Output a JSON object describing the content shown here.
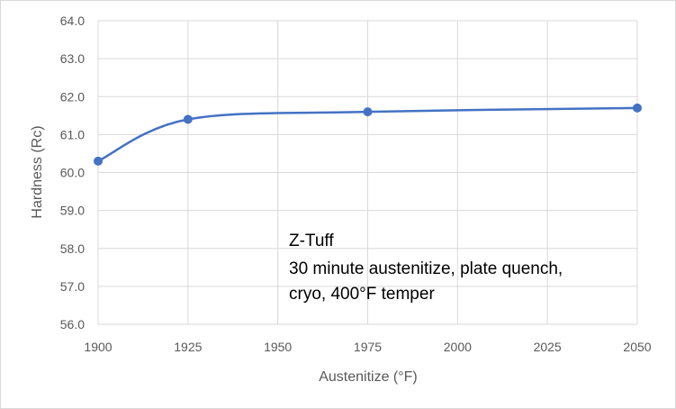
{
  "chart_data": {
    "type": "line",
    "title": "",
    "xlabel": "Austenitize (°F)",
    "ylabel": "Hardness (Rc)",
    "xlim": [
      1900,
      2050
    ],
    "ylim": [
      56.0,
      64.0
    ],
    "x_ticks": [
      "1900",
      "1925",
      "1950",
      "1975",
      "2000",
      "2025",
      "2050"
    ],
    "y_ticks": [
      "56.0",
      "57.0",
      "58.0",
      "59.0",
      "60.0",
      "61.0",
      "62.0",
      "63.0",
      "64.0"
    ],
    "grid": true,
    "smoothed": true,
    "series": [
      {
        "x": [
          1900,
          1925,
          1975,
          2050
        ],
        "y": [
          60.3,
          61.4,
          61.6,
          61.7
        ],
        "color": "#4472c4"
      }
    ],
    "annotation_lines": [
      "Z-Tuff",
      "30 minute austenitize, plate quench,",
      "cryo, 400°F temper"
    ]
  }
}
